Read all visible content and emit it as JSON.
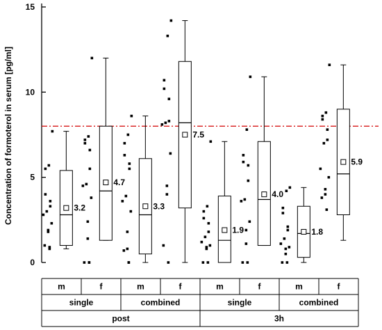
{
  "chart_data": {
    "type": "box",
    "title": "",
    "xlabel": "",
    "ylabel": "Concentration of formoterol in serum [pg/ml]",
    "ylim": [
      0,
      15
    ],
    "yticks": [
      0,
      5,
      10,
      15
    ],
    "reference_line": {
      "value": 8,
      "color": "#d40000",
      "style": "dash-dot"
    },
    "category_rows": {
      "sex": [
        "m",
        "f",
        "m",
        "f",
        "m",
        "f",
        "m",
        "f"
      ],
      "treatment": [
        "single",
        "combined",
        "single",
        "combined"
      ],
      "time": [
        "post",
        "3h"
      ]
    },
    "groups": [
      {
        "time": "post",
        "treatment": "single",
        "sex": "m",
        "whisker_low": 0.8,
        "q1": 1.0,
        "median": 2.8,
        "q3": 5.4,
        "whisker_high": 7.7,
        "mean": 3.2,
        "mean_label": "3.2",
        "points": [
          7.7,
          5.7,
          5.5,
          4.0,
          3.6,
          3.3,
          3.0,
          2.8,
          2.3,
          1.9,
          1.8,
          1.0,
          0.9,
          0.8
        ]
      },
      {
        "time": "post",
        "treatment": "single",
        "sex": "f",
        "whisker_low": 1.3,
        "q1": 1.3,
        "median": 4.2,
        "q3": 8.0,
        "whisker_high": 12.0,
        "mean": 4.7,
        "mean_label": "4.7",
        "points": [
          12.0,
          7.4,
          7.2,
          7.0,
          6.6,
          5.5,
          4.6,
          4.5,
          3.8,
          2.4,
          1.4,
          0.0,
          0.0,
          0.0
        ]
      },
      {
        "time": "post",
        "treatment": "combined",
        "sex": "m",
        "whisker_low": 0.0,
        "q1": 0.5,
        "median": 2.8,
        "q3": 6.1,
        "whisker_high": 8.6,
        "mean": 3.3,
        "mean_label": "3.3",
        "points": [
          8.6,
          7.5,
          7.0,
          6.3,
          5.8,
          5.5,
          3.9,
          3.6,
          3.0,
          1.8,
          0.8,
          0.7,
          0.0,
          0.0
        ]
      },
      {
        "time": "post",
        "treatment": "combined",
        "sex": "f",
        "whisker_low": 0.0,
        "q1": 3.2,
        "median": 8.2,
        "q3": 11.8,
        "whisker_high": 14.2,
        "mean": 7.5,
        "mean_label": "7.5",
        "points": [
          14.2,
          13.3,
          10.7,
          10.2,
          9.6,
          8.3,
          8.2,
          8.1,
          6.4,
          4.5,
          4.0,
          1.0,
          0.0
        ]
      },
      {
        "time": "3h",
        "treatment": "single",
        "sex": "m",
        "whisker_low": 0.0,
        "q1": 0.0,
        "median": 1.3,
        "q3": 3.9,
        "whisker_high": 7.1,
        "mean": 1.9,
        "mean_label": "1.9",
        "points": [
          7.1,
          3.3,
          3.0,
          2.6,
          2.3,
          1.8,
          1.5,
          1.2,
          1.0,
          0.9,
          0.8,
          0.0,
          0.0
        ]
      },
      {
        "time": "3h",
        "treatment": "single",
        "sex": "f",
        "whisker_low": 1.0,
        "q1": 1.0,
        "median": 3.7,
        "q3": 7.1,
        "whisker_high": 10.9,
        "mean": 4.0,
        "mean_label": "4.0",
        "points": [
          10.9,
          7.8,
          6.3,
          5.9,
          5.7,
          4.8,
          3.7,
          3.6,
          2.4,
          1.9,
          1.1,
          0.0,
          0.0
        ]
      },
      {
        "time": "3h",
        "treatment": "combined",
        "sex": "m",
        "whisker_low": 0.0,
        "q1": 0.3,
        "median": 1.7,
        "q3": 3.3,
        "whisker_high": 4.4,
        "mean": 1.8,
        "mean_label": "1.8",
        "points": [
          4.4,
          4.2,
          3.2,
          2.9,
          2.1,
          1.9,
          1.4,
          1.1,
          0.9,
          0.8,
          0.5,
          0.0,
          0.0
        ]
      },
      {
        "time": "3h",
        "treatment": "combined",
        "sex": "f",
        "whisker_low": 1.3,
        "q1": 2.8,
        "median": 5.2,
        "q3": 9.0,
        "whisker_high": 11.6,
        "mean": 5.9,
        "mean_label": "5.9",
        "points": [
          11.6,
          8.8,
          8.6,
          8.4,
          7.8,
          7.2,
          7.0,
          5.5,
          5.0,
          4.3,
          4.0,
          3.8,
          3.1
        ]
      }
    ]
  }
}
